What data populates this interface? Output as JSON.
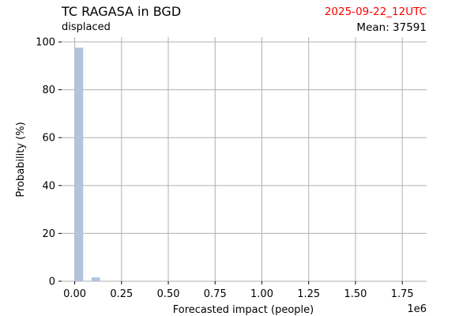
{
  "header": {
    "title": "TC RAGASA in BGD",
    "subtitle": "displaced",
    "date": "2025-09-22_12UTC",
    "mean": "Mean: 37591"
  },
  "colors": {
    "bar": "#b0c4de",
    "grid": "#b0b0b0",
    "date": "#ff0000"
  },
  "chart_data": {
    "type": "bar",
    "title": "TC RAGASA in BGD",
    "subtitle": "displaced",
    "xlabel": "Forecasted impact (people)",
    "ylabel": "Probability (%)",
    "x_offset_label": "1e6",
    "xlim": [
      -0.07,
      1.88
    ],
    "ylim": [
      0,
      102
    ],
    "x_ticks": [
      0,
      0.25,
      0.5,
      0.75,
      1.0,
      1.25,
      1.5,
      1.75
    ],
    "x_tick_labels": [
      "0.00",
      "0.25",
      "0.50",
      "0.75",
      "1.00",
      "1.25",
      "1.50",
      "1.75"
    ],
    "y_ticks": [
      0,
      20,
      40,
      60,
      80,
      100
    ],
    "grid": true,
    "bin_width": 0.045,
    "bins": [
      {
        "start": 0.0,
        "value": 97.6
      },
      {
        "start": 0.09,
        "value": 1.6
      }
    ]
  }
}
